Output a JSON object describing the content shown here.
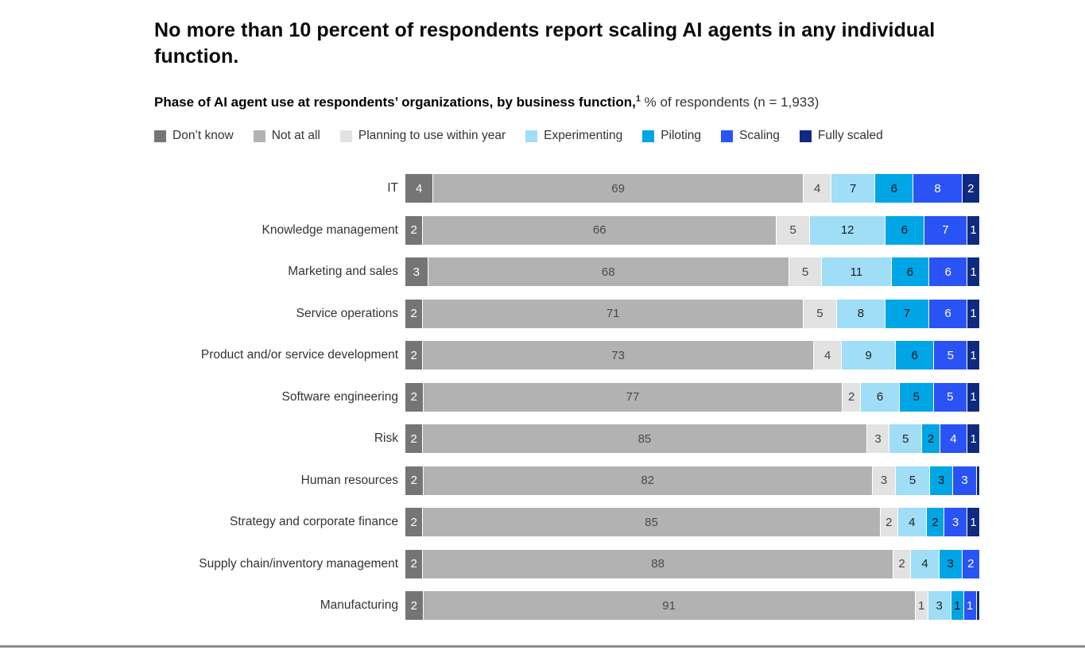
{
  "page": {
    "title": "No more than 10 percent of respondents report scaling AI agents in any individual function.",
    "subtitle_bold": "Phase of AI agent use at respondents’ organizations, by business function,",
    "subtitle_sup": "1",
    "subtitle_rest": " % of respondents (n = 1,933)"
  },
  "colors": {
    "dont_know": "#757575",
    "not_at_all": "#b2b2b2",
    "planning": "#e2e2e2",
    "experimenting": "#a0ddf6",
    "piloting": "#00a5e6",
    "scaling": "#2a53f5",
    "fully_scaled": "#0f2a7e",
    "bottom_rule": "#8c8c8c"
  },
  "legend": [
    {
      "label": "Don’t know",
      "color": "#757575"
    },
    {
      "label": "Not at all",
      "color": "#b2b2b2"
    },
    {
      "label": "Planning to use within year",
      "color": "#e2e2e2"
    },
    {
      "label": "Experimenting",
      "color": "#a0ddf6"
    },
    {
      "label": "Piloting",
      "color": "#00a5e6"
    },
    {
      "label": "Scaling",
      "color": "#2a53f5"
    },
    {
      "label": "Fully scaled",
      "color": "#0f2a7e"
    }
  ],
  "chart_data": {
    "type": "bar",
    "orientation": "horizontal-stacked",
    "units": "% of respondents",
    "n": "1,933",
    "categories": [
      "IT",
      "Knowledge management",
      "Marketing and sales",
      "Service operations",
      "Product and/or service development",
      "Software engineering",
      "Risk",
      "Human resources",
      "Strategy and corporate finance",
      "Supply chain/inventory management",
      "Manufacturing"
    ],
    "series": [
      {
        "name": "Don’t know",
        "color": "#757575",
        "text_color": "#ffffff",
        "values": [
          4,
          2,
          3,
          2,
          2,
          2,
          2,
          2,
          2,
          2,
          2
        ]
      },
      {
        "name": "Not at all",
        "color": "#b2b2b2",
        "text_color": "#4a4a4a",
        "values": [
          69,
          66,
          68,
          71,
          73,
          77,
          85,
          82,
          85,
          88,
          91
        ]
      },
      {
        "name": "Planning to use within year",
        "color": "#e2e2e2",
        "text_color": "#444444",
        "values": [
          4,
          5,
          5,
          5,
          4,
          2,
          3,
          3,
          2,
          2,
          1
        ]
      },
      {
        "name": "Experimenting",
        "color": "#a0ddf6",
        "text_color": "#1f1f1f",
        "values": [
          7,
          12,
          11,
          8,
          9,
          6,
          5,
          5,
          4,
          4,
          3
        ]
      },
      {
        "name": "Piloting",
        "color": "#00a5e6",
        "text_color": "#111111",
        "values": [
          6,
          6,
          6,
          7,
          6,
          5,
          2,
          3,
          2,
          3,
          1
        ]
      },
      {
        "name": "Scaling",
        "color": "#2a53f5",
        "text_color": "#ffffff",
        "values": [
          8,
          7,
          6,
          6,
          5,
          5,
          4,
          3,
          3,
          2,
          1
        ]
      },
      {
        "name": "Fully scaled",
        "color": "#0f2a7e",
        "text_color": "#ffffff",
        "values": [
          2,
          1,
          1,
          1,
          1,
          1,
          1,
          0.5,
          1,
          0,
          0.5
        ]
      }
    ],
    "legend_position": "top",
    "grid": false,
    "value_labels": "inside segments; values below 1 shown as unlabeled slivers"
  }
}
